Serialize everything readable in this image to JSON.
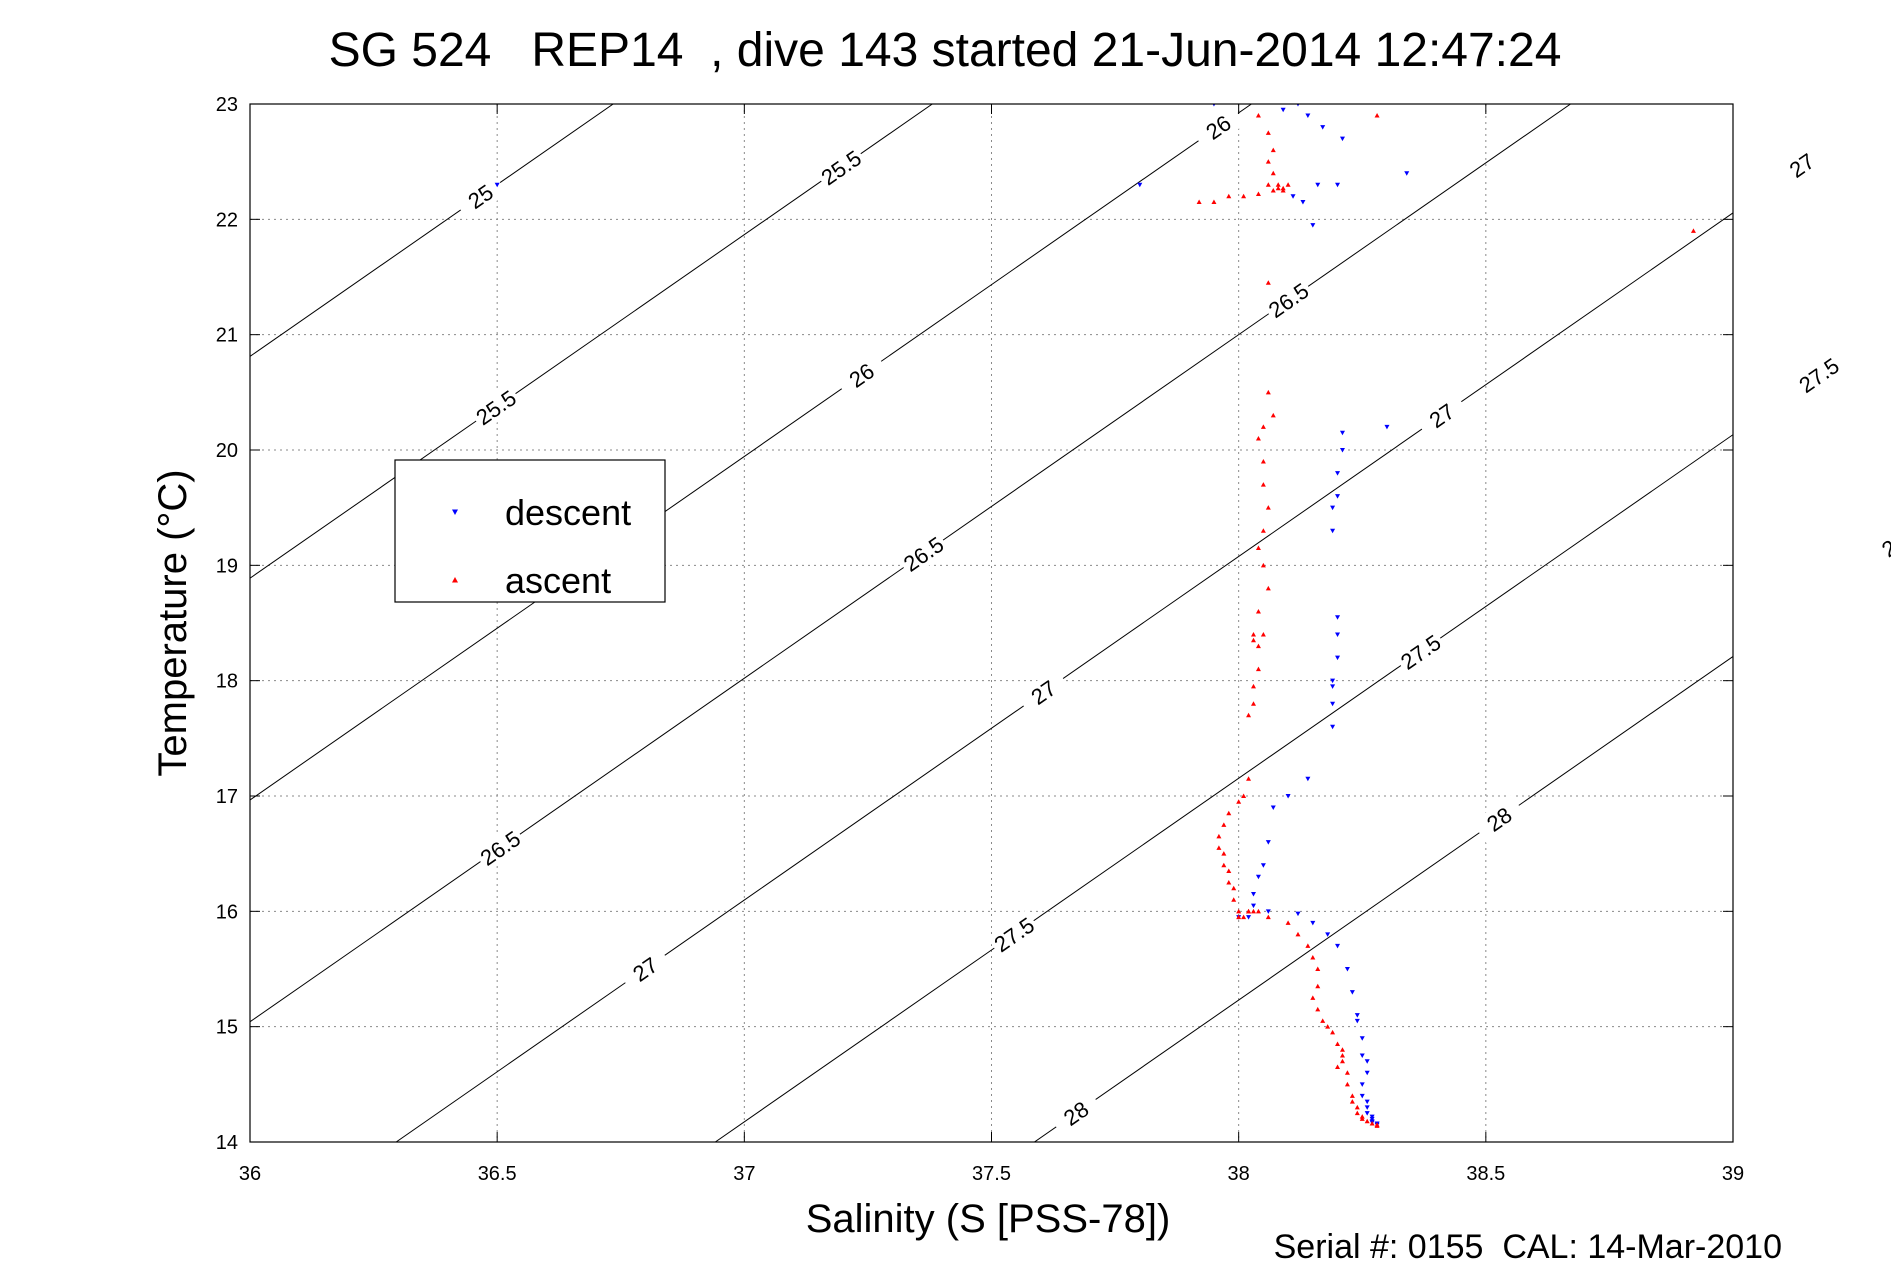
{
  "chart_data": {
    "type": "scatter",
    "title": "SG 524   REP14  , dive 143 started 21-Jun-2014 12:47:24",
    "xlabel": "Salinity (S [PSS-78])",
    "ylabel": "Temperature (°C)",
    "footer": "Serial #: 0155  CAL: 14-Mar-2010",
    "xlim": [
      36,
      39
    ],
    "ylim": [
      14,
      23
    ],
    "xticks": [
      "36",
      "36.5",
      "37",
      "37.5",
      "38",
      "38.5",
      "39"
    ],
    "yticks": [
      "14",
      "15",
      "16",
      "17",
      "18",
      "19",
      "20",
      "21",
      "22",
      "23"
    ],
    "grid": true,
    "legend_position": "upper-left",
    "colors": {
      "descent": "#0000ff",
      "ascent": "#ff0000",
      "contour": "#000000"
    },
    "density_contours": [
      {
        "level": "25",
        "labels": [
          [
            36.12,
            22.2
          ]
        ]
      },
      {
        "level": "25.5",
        "labels": [
          [
            36.1,
            20.37
          ],
          [
            36.92,
            22.45
          ]
        ]
      },
      {
        "level": "26",
        "labels": [
          [
            36.85,
            20.65
          ],
          [
            37.66,
            22.8
          ]
        ]
      },
      {
        "level": "26.5",
        "labels": [
          [
            36.2,
            16.55
          ],
          [
            36.97,
            19.1
          ],
          [
            37.78,
            21.3
          ]
        ]
      },
      {
        "level": "27",
        "labels": [
          [
            36.0,
            15.5
          ],
          [
            37.26,
            17.9
          ],
          [
            38.06,
            20.3
          ],
          [
            38.85,
            22.47
          ]
        ]
      },
      {
        "level": "27.5",
        "labels": [
          [
            37.18,
            15.8
          ],
          [
            38.02,
            18.25
          ],
          [
            38.75,
            20.65
          ]
        ]
      },
      {
        "level": "28",
        "labels": [
          [
            37.44,
            14.25
          ],
          [
            38.18,
            16.8
          ],
          [
            38.9,
            19.18
          ]
        ]
      }
    ],
    "series": [
      {
        "name": "descent",
        "x": [
          36.5,
          37.8,
          37.95,
          38.09,
          38.12,
          38.14,
          38.17,
          38.21,
          38.34,
          38.11,
          38.13,
          38.16,
          38.2,
          38.15,
          38.3,
          38.21,
          38.21,
          38.2,
          38.2,
          38.19,
          38.19,
          38.2,
          38.2,
          38.2,
          38.19,
          38.19,
          38.19,
          38.19,
          38.14,
          38.1,
          38.07,
          38.06,
          38.05,
          38.04,
          38.03,
          38.03,
          38.02,
          38.0,
          38.06,
          38.12,
          38.15,
          38.18,
          38.2,
          38.22,
          38.23,
          38.24,
          38.24,
          38.25,
          38.25,
          38.26,
          38.26,
          38.25,
          38.25,
          38.26,
          38.26,
          38.26,
          38.27,
          38.27,
          38.27,
          38.27,
          38.28,
          38.28
        ],
        "y": [
          22.3,
          22.3,
          23.0,
          22.95,
          23.0,
          22.9,
          22.8,
          22.7,
          22.4,
          22.2,
          22.15,
          22.3,
          22.3,
          21.95,
          20.2,
          20.15,
          20.0,
          19.8,
          19.6,
          19.5,
          19.3,
          18.55,
          18.4,
          18.2,
          18.0,
          17.8,
          17.6,
          17.95,
          17.15,
          17.0,
          16.9,
          16.6,
          16.4,
          16.3,
          16.15,
          16.05,
          15.95,
          15.95,
          16.0,
          15.98,
          15.9,
          15.8,
          15.7,
          15.5,
          15.3,
          15.1,
          15.05,
          14.9,
          14.75,
          14.7,
          14.6,
          14.5,
          14.4,
          14.35,
          14.3,
          14.25,
          14.22,
          14.2,
          14.18,
          14.17,
          14.16,
          14.15
        ]
      },
      {
        "name": "ascent",
        "x": [
          38.04,
          38.06,
          38.07,
          38.06,
          38.07,
          38.06,
          38.08,
          38.09,
          38.08,
          37.92,
          37.95,
          37.98,
          38.01,
          38.04,
          38.07,
          38.09,
          38.1,
          38.06,
          38.28,
          38.92,
          38.06,
          38.07,
          38.05,
          38.04,
          38.05,
          38.05,
          38.06,
          38.05,
          38.04,
          38.05,
          38.06,
          38.04,
          38.05,
          38.04,
          38.04,
          38.03,
          38.03,
          38.02,
          38.03,
          38.03,
          38.02,
          38.01,
          38.0,
          37.98,
          37.97,
          37.96,
          37.96,
          37.97,
          37.97,
          37.98,
          37.98,
          37.99,
          37.99,
          38.0,
          38.0,
          38.01,
          38.02,
          38.02,
          38.03,
          38.04,
          38.06,
          38.1,
          38.12,
          38.14,
          38.15,
          38.16,
          38.16,
          38.15,
          38.16,
          38.17,
          38.18,
          38.19,
          38.2,
          38.21,
          38.21,
          38.21,
          38.2,
          38.22,
          38.22,
          38.23,
          38.23,
          38.24,
          38.24,
          38.25,
          38.25,
          38.26,
          38.27,
          38.28,
          38.28
        ],
        "y": [
          22.9,
          22.75,
          22.6,
          22.5,
          22.4,
          22.3,
          22.27,
          22.25,
          22.3,
          22.15,
          22.15,
          22.2,
          22.2,
          22.22,
          22.25,
          22.27,
          22.3,
          21.45,
          22.9,
          21.9,
          20.5,
          20.3,
          20.2,
          20.1,
          19.9,
          19.7,
          19.5,
          19.3,
          19.15,
          19.0,
          18.8,
          18.6,
          18.4,
          18.3,
          18.1,
          17.95,
          17.8,
          17.7,
          18.4,
          18.35,
          17.15,
          17.0,
          16.95,
          16.85,
          16.75,
          16.65,
          16.55,
          16.5,
          16.4,
          16.35,
          16.25,
          16.2,
          16.1,
          16.0,
          15.95,
          15.95,
          16.0,
          16.0,
          16.0,
          16.0,
          15.95,
          15.9,
          15.8,
          15.7,
          15.6,
          15.5,
          15.35,
          15.25,
          15.15,
          15.05,
          15.0,
          14.95,
          14.85,
          14.8,
          14.75,
          14.7,
          14.65,
          14.6,
          14.5,
          14.4,
          14.35,
          14.3,
          14.25,
          14.22,
          14.2,
          14.18,
          14.16,
          14.15,
          14.14
        ]
      }
    ]
  }
}
